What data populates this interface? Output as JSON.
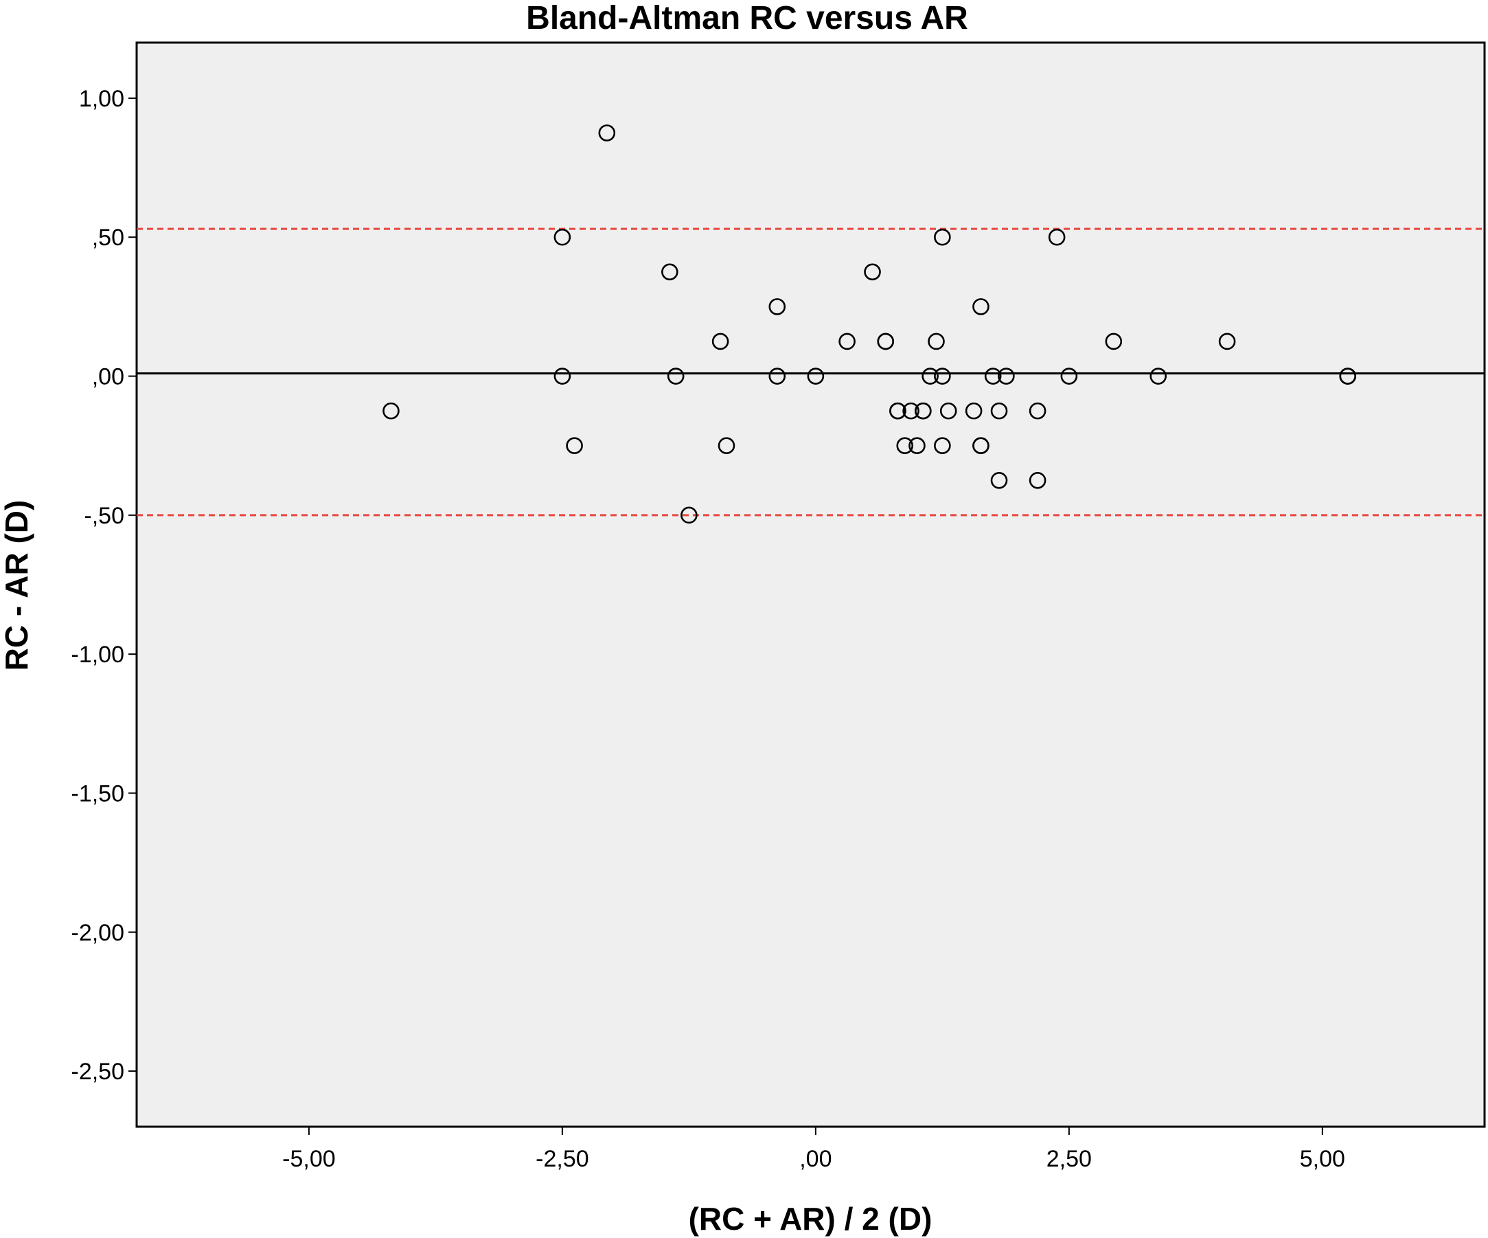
{
  "chart_data": {
    "type": "scatter",
    "title": "Bland-Altman RC versus AR",
    "xlabel": "(RC + AR) / 2 (D)",
    "ylabel": "RC - AR (D)",
    "xlim": [
      -6.7,
      6.6
    ],
    "ylim": [
      -2.7,
      1.2
    ],
    "x_ticks": [
      {
        "value": -5,
        "label": "-5,00"
      },
      {
        "value": -2.5,
        "label": "-2,50"
      },
      {
        "value": 0,
        "label": ",00"
      },
      {
        "value": 2.5,
        "label": "2,50"
      },
      {
        "value": 5,
        "label": "5,00"
      }
    ],
    "y_ticks": [
      {
        "value": 1,
        "label": "1,00"
      },
      {
        "value": 0.5,
        "label": ",50"
      },
      {
        "value": 0,
        "label": ",00"
      },
      {
        "value": -0.5,
        "label": "-,50"
      },
      {
        "value": -1,
        "label": "-1,00"
      },
      {
        "value": -1.5,
        "label": "-1,50"
      },
      {
        "value": -2,
        "label": "-2,00"
      },
      {
        "value": -2.5,
        "label": "-2,50"
      }
    ],
    "mean_line": 0.01,
    "limits_of_agreement": [
      0.53,
      -0.5
    ],
    "grid": false,
    "colors": {
      "plot_background": "#efefef",
      "marker": "#000000",
      "mean_line": "#000000",
      "limit_lines": "#e8473e"
    },
    "points": [
      {
        "x": -4.19,
        "y": -0.125
      },
      {
        "x": -2.5,
        "y": 0.5
      },
      {
        "x": -2.5,
        "y": 0.0
      },
      {
        "x": -2.38,
        "y": -0.25
      },
      {
        "x": -2.06,
        "y": 0.875
      },
      {
        "x": -1.44,
        "y": 0.375
      },
      {
        "x": -1.38,
        "y": 0.0
      },
      {
        "x": -1.25,
        "y": -0.5
      },
      {
        "x": -0.94,
        "y": 0.125
      },
      {
        "x": -0.88,
        "y": -0.25
      },
      {
        "x": -0.38,
        "y": 0.25
      },
      {
        "x": -0.38,
        "y": 0.0
      },
      {
        "x": 0.0,
        "y": 0.0
      },
      {
        "x": 0.31,
        "y": 0.125
      },
      {
        "x": 0.56,
        "y": 0.375
      },
      {
        "x": 0.69,
        "y": 0.125
      },
      {
        "x": 0.69,
        "y": 0.125
      },
      {
        "x": 0.81,
        "y": -0.125
      },
      {
        "x": 0.81,
        "y": -0.125
      },
      {
        "x": 0.88,
        "y": -0.25
      },
      {
        "x": 0.94,
        "y": -0.125
      },
      {
        "x": 1.0,
        "y": -0.25
      },
      {
        "x": 1.06,
        "y": -0.125
      },
      {
        "x": 1.06,
        "y": -0.125
      },
      {
        "x": 1.13,
        "y": 0.0
      },
      {
        "x": 1.19,
        "y": 0.125
      },
      {
        "x": 1.25,
        "y": 0.5
      },
      {
        "x": 1.25,
        "y": 0.0
      },
      {
        "x": 1.25,
        "y": -0.25
      },
      {
        "x": 1.31,
        "y": -0.125
      },
      {
        "x": 1.56,
        "y": -0.125
      },
      {
        "x": 1.63,
        "y": 0.25
      },
      {
        "x": 1.63,
        "y": -0.25
      },
      {
        "x": 1.63,
        "y": -0.25
      },
      {
        "x": 1.75,
        "y": 0.0
      },
      {
        "x": 1.81,
        "y": -0.125
      },
      {
        "x": 1.81,
        "y": -0.375
      },
      {
        "x": 1.88,
        "y": 0.0
      },
      {
        "x": 2.19,
        "y": -0.125
      },
      {
        "x": 2.19,
        "y": -0.375
      },
      {
        "x": 2.38,
        "y": 0.5
      },
      {
        "x": 2.5,
        "y": 0.0
      },
      {
        "x": 2.94,
        "y": 0.125
      },
      {
        "x": 3.38,
        "y": 0.0
      },
      {
        "x": 4.06,
        "y": 0.125
      },
      {
        "x": 5.25,
        "y": 0.0
      },
      {
        "x": 5.25,
        "y": 0.0
      }
    ]
  }
}
